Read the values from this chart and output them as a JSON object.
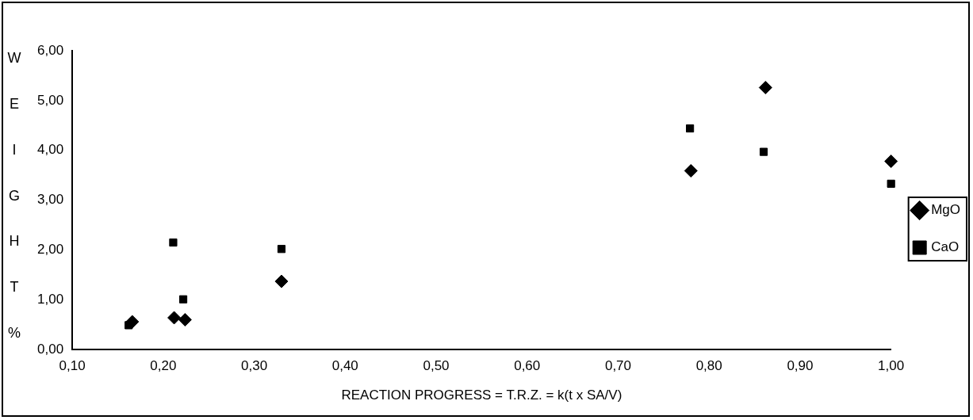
{
  "chart_data": {
    "type": "scatter",
    "xlabel": "REACTION PROGRESS = T.R.Z. = k(t x SA/V)",
    "ylabel": "WEIGHT %",
    "xlim": [
      0.1,
      1.0
    ],
    "ylim": [
      0,
      6
    ],
    "xticks": [
      {
        "value": 0.1,
        "label": "0,10"
      },
      {
        "value": 0.2,
        "label": "0,20"
      },
      {
        "value": 0.3,
        "label": "0,30"
      },
      {
        "value": 0.4,
        "label": "0,40"
      },
      {
        "value": 0.5,
        "label": "0,50"
      },
      {
        "value": 0.6,
        "label": "0,60"
      },
      {
        "value": 0.7,
        "label": "0,70"
      },
      {
        "value": 0.8,
        "label": "0,80"
      },
      {
        "value": 0.9,
        "label": "0,90"
      },
      {
        "value": 1.0,
        "label": "1,00"
      }
    ],
    "yticks": [
      {
        "value": 0,
        "label": "0,00"
      },
      {
        "value": 1,
        "label": "1,00"
      },
      {
        "value": 2,
        "label": "2,00"
      },
      {
        "value": 3,
        "label": "3,00"
      },
      {
        "value": 4,
        "label": "4,00"
      },
      {
        "value": 5,
        "label": "5,00"
      },
      {
        "value": 6,
        "label": "6,00"
      }
    ],
    "grid": false,
    "legend": "right",
    "series": [
      {
        "name": "MgO",
        "color": "#000000",
        "marker": "diamond",
        "x": [
          0.166,
          0.212,
          0.224,
          0.33,
          0.78,
          0.862,
          1.0
        ],
        "values": [
          0.56,
          0.64,
          0.6,
          1.37,
          3.59,
          5.26,
          3.78
        ]
      },
      {
        "name": "CaO",
        "color": "#000000",
        "marker": "square",
        "x": [
          0.162,
          0.211,
          0.222,
          0.33,
          0.779,
          0.86,
          1.0
        ],
        "values": [
          0.49,
          2.15,
          1.01,
          2.02,
          4.44,
          3.97,
          3.33
        ]
      }
    ]
  }
}
